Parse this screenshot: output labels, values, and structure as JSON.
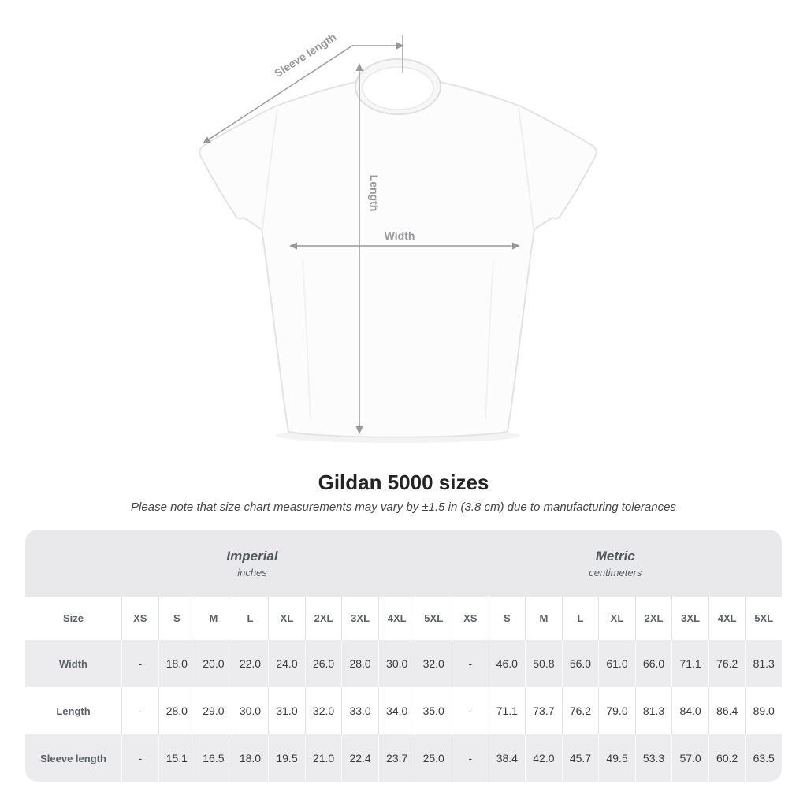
{
  "diagram": {
    "sleeve_label": "Sleeve length",
    "length_label": "Length",
    "width_label": "Width",
    "arrow_color": "#98999b",
    "shirt_color": "#fcfcfd"
  },
  "chart_data": {
    "type": "table",
    "title": "Gildan 5000 sizes",
    "note": "Please note that size chart measurements may vary by ±1.5 in (3.8 cm) due to manufacturing tolerances",
    "unit_groups": [
      {
        "label": "Imperial",
        "sublabel": "inches"
      },
      {
        "label": "Metric",
        "sublabel": "centimeters"
      }
    ],
    "corner_label": "Size",
    "sizes": [
      "XS",
      "S",
      "M",
      "L",
      "XL",
      "2XL",
      "3XL",
      "4XL",
      "5XL"
    ],
    "rows": [
      {
        "label": "Width",
        "imperial": [
          "-",
          "18.0",
          "20.0",
          "22.0",
          "24.0",
          "26.0",
          "28.0",
          "30.0",
          "32.0"
        ],
        "metric": [
          "-",
          "46.0",
          "50.8",
          "56.0",
          "61.0",
          "66.0",
          "71.1",
          "76.2",
          "81.3"
        ]
      },
      {
        "label": "Length",
        "imperial": [
          "-",
          "28.0",
          "29.0",
          "30.0",
          "31.0",
          "32.0",
          "33.0",
          "34.0",
          "35.0"
        ],
        "metric": [
          "-",
          "71.1",
          "73.7",
          "76.2",
          "79.0",
          "81.3",
          "84.0",
          "86.4",
          "89.0"
        ]
      },
      {
        "label": "Sleeve length",
        "imperial": [
          "-",
          "15.1",
          "16.5",
          "18.0",
          "19.5",
          "21.0",
          "22.4",
          "23.7",
          "25.0"
        ],
        "metric": [
          "-",
          "38.4",
          "42.0",
          "45.7",
          "49.5",
          "53.3",
          "57.0",
          "60.2",
          "63.5"
        ]
      }
    ],
    "layout": {
      "band_color": "#e9e9eb",
      "stripe_color": "#ececee",
      "stripe_rows": [
        "Width",
        "Sleeve length"
      ]
    }
  }
}
